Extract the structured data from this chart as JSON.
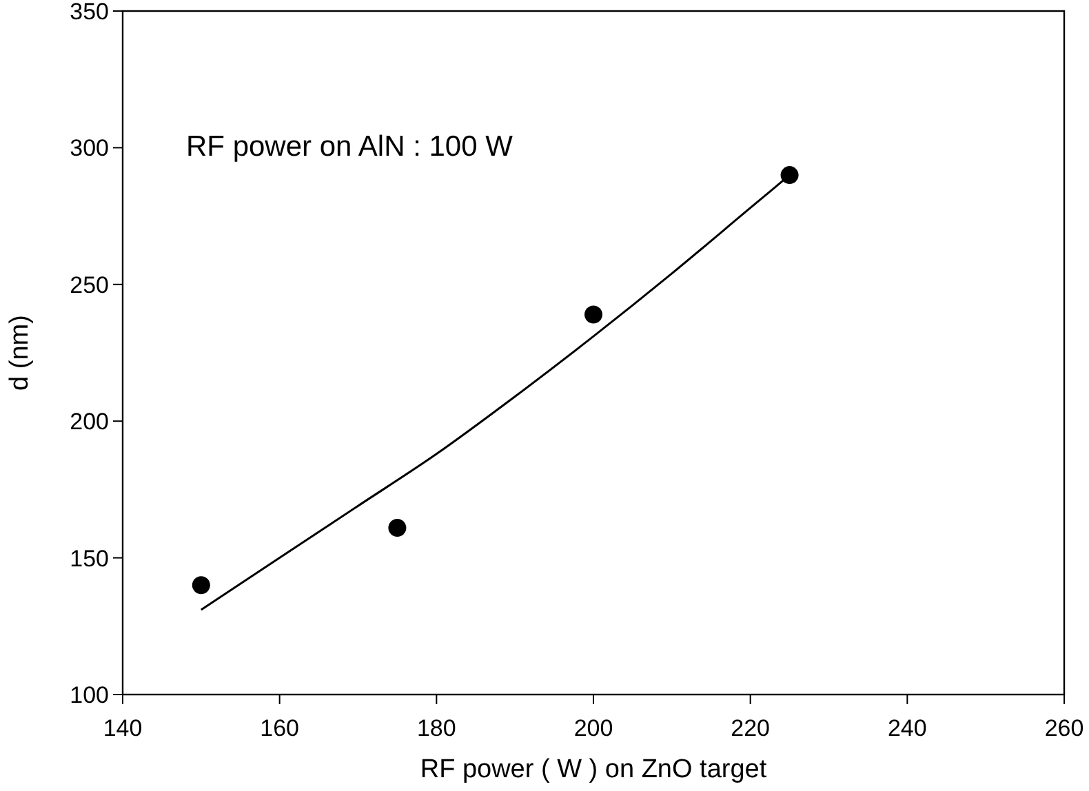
{
  "chart_data": {
    "type": "scatter",
    "xlabel": "RF power ( W ) on ZnO target",
    "ylabel": "d (nm)",
    "annotations": [
      "RF power on AlN : 100 W"
    ],
    "xlim": [
      140,
      260
    ],
    "ylim": [
      100,
      350
    ],
    "xticks": [
      140,
      160,
      180,
      200,
      220,
      240,
      260
    ],
    "yticks": [
      100,
      150,
      200,
      250,
      300,
      350
    ],
    "grid": false,
    "series": [
      {
        "color": "#000000",
        "marker": "circle",
        "x": [
          150,
          175,
          200,
          225
        ],
        "values": [
          140,
          161,
          239,
          290
        ]
      },
      {
        "type": "line",
        "color": "#000000",
        "marker": "none",
        "line_style": "solid",
        "x": [
          150,
          160,
          170,
          180,
          190,
          200,
          210,
          220,
          225
        ],
        "values": [
          131,
          150,
          169,
          188,
          209,
          231,
          254,
          278,
          290
        ]
      }
    ]
  }
}
